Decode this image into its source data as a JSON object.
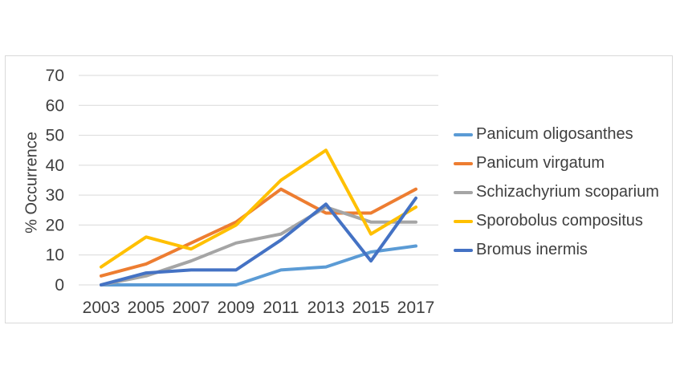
{
  "chart_data": {
    "type": "line",
    "categories": [
      "2003",
      "2005",
      "2007",
      "2009",
      "2011",
      "2013",
      "2015",
      "2017"
    ],
    "series": [
      {
        "name": "Panicum oligosanthes",
        "color": "#5B9BD5",
        "values": [
          0,
          0,
          0,
          0,
          5,
          6,
          11,
          13
        ]
      },
      {
        "name": "Panicum virgatum",
        "color": "#ED7D31",
        "values": [
          3,
          7,
          14,
          21,
          32,
          24,
          24,
          32
        ]
      },
      {
        "name": "Schizachyrium scoparium",
        "color": "#A5A5A5",
        "values": [
          0,
          3,
          8,
          14,
          17,
          26,
          21,
          21
        ]
      },
      {
        "name": "Sporobolus compositus",
        "color": "#FFC000",
        "values": [
          6,
          16,
          12,
          20,
          35,
          45,
          17,
          26
        ]
      },
      {
        "name": "Bromus inermis",
        "color": "#4472C4",
        "values": [
          0,
          4,
          5,
          5,
          15,
          27,
          8,
          29
        ]
      }
    ],
    "title": "",
    "xlabel": "",
    "ylabel": "% Occurrence",
    "ylim": [
      0,
      70
    ],
    "yticks": [
      0,
      10,
      20,
      30,
      40,
      50,
      60,
      70
    ],
    "grid": true,
    "legend_position": "right"
  },
  "style": {
    "gridline_color": "#D9D9D9",
    "border_color": "#D9D9D9",
    "text_color": "#3F3F3F"
  }
}
